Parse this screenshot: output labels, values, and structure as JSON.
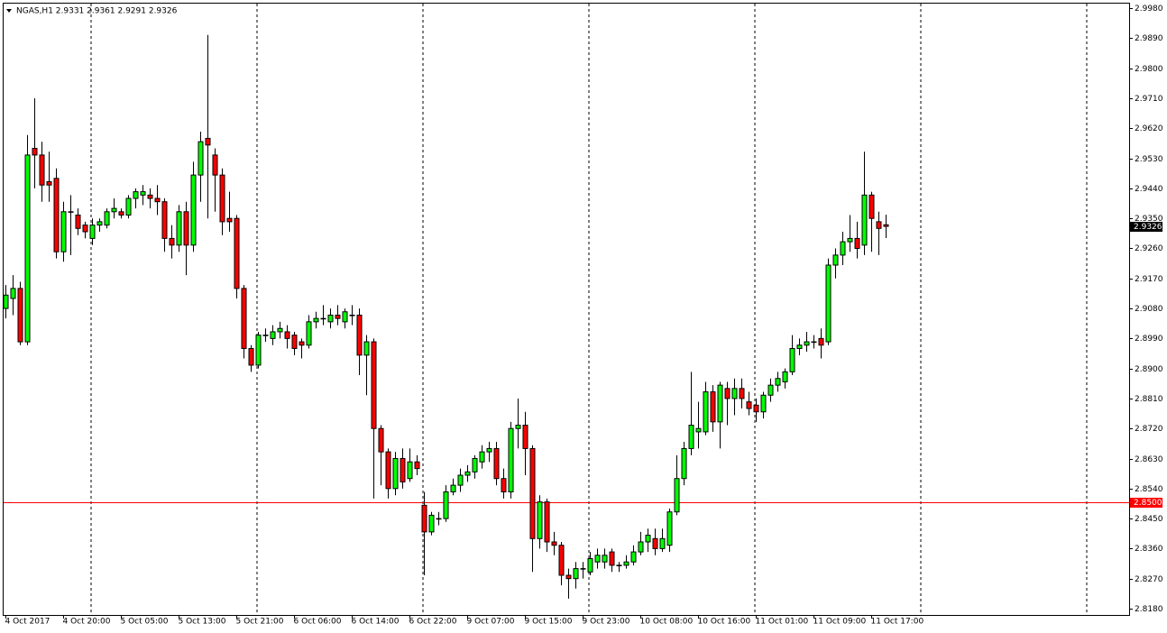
{
  "chart_data": {
    "type": "candlestick",
    "title": "NGAS,H1  2.9331 2.9361 2.9291 2.9326",
    "up_color": "#00ff00",
    "down_color": "#ff0000",
    "ylim": [
      2.8161,
      2.9994
    ],
    "yticks": [
      {
        "value": 2.998,
        "label": "2.9980"
      },
      {
        "value": 2.989,
        "label": "2.9890"
      },
      {
        "value": 2.98,
        "label": "2.9800"
      },
      {
        "value": 2.971,
        "label": "2.9710"
      },
      {
        "value": 2.962,
        "label": "2.9620"
      },
      {
        "value": 2.953,
        "label": "2.9530"
      },
      {
        "value": 2.944,
        "label": "2.9440"
      },
      {
        "value": 2.935,
        "label": "2.9350"
      },
      {
        "value": 2.926,
        "label": "2.9260"
      },
      {
        "value": 2.917,
        "label": "2.9170"
      },
      {
        "value": 2.908,
        "label": "2.9080"
      },
      {
        "value": 2.899,
        "label": "2.8990"
      },
      {
        "value": 2.89,
        "label": "2.8900"
      },
      {
        "value": 2.881,
        "label": "2.8810"
      },
      {
        "value": 2.872,
        "label": "2.8720"
      },
      {
        "value": 2.863,
        "label": "2.8630"
      },
      {
        "value": 2.854,
        "label": "2.8540"
      },
      {
        "value": 2.845,
        "label": "2.8450"
      },
      {
        "value": 2.836,
        "label": "2.8360"
      },
      {
        "value": 2.827,
        "label": "2.8270"
      },
      {
        "value": 2.818,
        "label": "2.8180"
      }
    ],
    "hline": {
      "value": 2.85,
      "label": "2.8500",
      "color": "#ff0000"
    },
    "last_price": {
      "value": 2.9326,
      "label": "2.9326"
    },
    "categories": [
      "4 Oct 2017",
      null,
      null,
      null,
      null,
      null,
      null,
      null,
      "4 Oct 20:00",
      null,
      null,
      null,
      null,
      null,
      null,
      null,
      "5 Oct 05:00",
      null,
      null,
      null,
      null,
      null,
      null,
      null,
      "5 Oct 13:00",
      null,
      null,
      null,
      null,
      null,
      null,
      null,
      "5 Oct 21:00",
      null,
      null,
      null,
      null,
      null,
      null,
      null,
      "6 Oct 06:00",
      null,
      null,
      null,
      null,
      null,
      null,
      null,
      "6 Oct 14:00",
      null,
      null,
      null,
      null,
      null,
      null,
      null,
      "6 Oct 22:00",
      null,
      null,
      null,
      null,
      null,
      null,
      null,
      "9 Oct 07:00",
      null,
      null,
      null,
      null,
      null,
      null,
      null,
      "9 Oct 15:00",
      null,
      null,
      null,
      null,
      null,
      null,
      null,
      "9 Oct 23:00",
      null,
      null,
      null,
      null,
      null,
      null,
      null,
      "10 Oct 08:00",
      null,
      null,
      null,
      null,
      null,
      null,
      null,
      "10 Oct 16:00",
      null,
      null,
      null,
      null,
      null,
      null,
      null,
      "11 Oct 01:00",
      null,
      null,
      null,
      null,
      null,
      null,
      null,
      "11 Oct 09:00",
      null,
      null,
      null,
      null,
      null,
      null,
      null,
      "11 Oct 17:00",
      null,
      null
    ],
    "open": [
      2.908,
      2.911,
      2.914,
      2.898,
      2.956,
      2.954,
      2.946,
      2.947,
      2.925,
      2.937,
      2.936,
      2.933,
      2.929,
      2.933,
      2.933,
      2.937,
      2.937,
      2.936,
      2.941,
      2.942,
      2.942,
      2.941,
      2.94,
      2.929,
      2.927,
      2.937,
      2.927,
      2.948,
      2.959,
      2.954,
      2.948,
      2.935,
      2.935,
      2.914,
      2.896,
      2.891,
      2.9,
      2.899,
      2.901,
      2.901,
      2.9,
      2.898,
      2.897,
      2.904,
      2.905,
      2.904,
      2.906,
      2.904,
      2.906,
      2.906,
      2.894,
      2.898,
      2.872,
      2.865,
      2.854,
      2.863,
      2.857,
      2.862,
      2.849,
      2.841,
      2.845,
      2.845,
      2.853,
      2.855,
      2.858,
      2.859,
      2.862,
      2.865,
      2.866,
      2.857,
      2.853,
      2.872,
      2.873,
      2.866,
      2.839,
      2.85,
      2.838,
      2.837,
      2.828,
      2.827,
      2.83,
      2.829,
      2.832,
      2.832,
      2.835,
      2.831,
      2.831,
      2.832,
      2.835,
      2.838,
      2.839,
      2.836,
      2.837,
      2.847,
      2.857,
      2.866,
      2.871,
      2.871,
      2.883,
      2.874,
      2.884,
      2.881,
      2.884,
      2.88,
      2.879,
      2.877,
      2.882,
      2.885,
      2.886,
      2.889,
      2.896,
      2.897,
      2.898,
      2.899,
      2.898,
      2.921,
      2.924,
      2.928,
      2.929,
      2.927,
      2.942,
      2.934,
      2.9331
    ],
    "high": [
      2.915,
      2.918,
      2.916,
      2.96,
      2.971,
      2.958,
      2.955,
      2.95,
      2.94,
      2.942,
      2.938,
      2.934,
      2.935,
      2.935,
      2.938,
      2.941,
      2.938,
      2.942,
      2.944,
      2.945,
      2.944,
      2.945,
      2.941,
      2.933,
      2.939,
      2.94,
      2.952,
      2.961,
      2.99,
      2.956,
      2.95,
      2.943,
      2.936,
      2.915,
      2.897,
      2.901,
      2.902,
      2.903,
      2.904,
      2.903,
      2.901,
      2.899,
      2.906,
      2.907,
      2.909,
      2.908,
      2.909,
      2.908,
      2.909,
      2.908,
      2.9,
      2.899,
      2.873,
      2.866,
      2.865,
      2.866,
      2.866,
      2.864,
      2.853,
      2.847,
      2.847,
      2.855,
      2.857,
      2.86,
      2.861,
      2.864,
      2.867,
      2.868,
      2.868,
      2.86,
      2.874,
      2.881,
      2.877,
      2.867,
      2.852,
      2.851,
      2.841,
      2.838,
      2.83,
      2.832,
      2.832,
      2.835,
      2.836,
      2.836,
      2.836,
      2.832,
      2.834,
      2.837,
      2.841,
      2.842,
      2.842,
      2.842,
      2.848,
      2.864,
      2.868,
      2.889,
      2.88,
      2.886,
      2.885,
      2.886,
      2.886,
      2.887,
      2.887,
      2.883,
      2.881,
      2.883,
      2.887,
      2.889,
      2.89,
      2.9,
      2.899,
      2.901,
      2.9,
      2.902,
      2.923,
      2.926,
      2.931,
      2.936,
      2.934,
      2.955,
      2.943,
      2.937,
      2.9361
    ],
    "low": [
      2.905,
      2.906,
      2.897,
      2.897,
      2.944,
      2.94,
      2.94,
      2.923,
      2.922,
      2.924,
      2.93,
      2.929,
      2.927,
      2.931,
      2.932,
      2.935,
      2.935,
      2.935,
      2.938,
      2.939,
      2.938,
      2.936,
      2.925,
      2.923,
      2.925,
      2.918,
      2.925,
      2.94,
      2.935,
      2.937,
      2.93,
      2.931,
      2.911,
      2.893,
      2.889,
      2.89,
      2.898,
      2.897,
      2.899,
      2.896,
      2.894,
      2.893,
      2.896,
      2.902,
      2.903,
      2.902,
      2.903,
      2.902,
      2.903,
      2.888,
      2.882,
      2.851,
      2.855,
      2.851,
      2.852,
      2.854,
      2.856,
      2.858,
      2.828,
      2.84,
      2.843,
      2.844,
      2.852,
      2.853,
      2.856,
      2.857,
      2.86,
      2.862,
      2.855,
      2.851,
      2.851,
      2.866,
      2.858,
      2.829,
      2.836,
      2.835,
      2.834,
      2.825,
      2.821,
      2.824,
      2.827,
      2.828,
      2.83,
      2.83,
      2.829,
      2.829,
      2.83,
      2.831,
      2.834,
      2.835,
      2.834,
      2.835,
      2.835,
      2.846,
      2.855,
      2.864,
      2.866,
      2.87,
      2.871,
      2.866,
      2.873,
      2.876,
      2.878,
      2.876,
      2.874,
      2.875,
      2.88,
      2.883,
      2.884,
      2.888,
      2.894,
      2.895,
      2.896,
      2.893,
      2.897,
      2.917,
      2.921,
      2.925,
      2.923,
      2.924,
      2.925,
      2.924,
      2.9291
    ],
    "close": [
      2.912,
      2.914,
      2.898,
      2.954,
      2.954,
      2.945,
      2.945,
      2.925,
      2.937,
      2.937,
      2.932,
      2.931,
      2.933,
      2.934,
      2.937,
      2.938,
      2.936,
      2.941,
      2.943,
      2.943,
      2.941,
      2.94,
      2.929,
      2.927,
      2.937,
      2.927,
      2.948,
      2.958,
      2.957,
      2.948,
      2.934,
      2.934,
      2.914,
      2.896,
      2.891,
      2.9,
      2.9,
      2.901,
      2.902,
      2.899,
      2.896,
      2.897,
      2.904,
      2.905,
      2.905,
      2.906,
      2.905,
      2.907,
      2.906,
      2.894,
      2.898,
      2.872,
      2.865,
      2.854,
      2.863,
      2.856,
      2.862,
      2.86,
      2.841,
      2.846,
      2.845,
      2.853,
      2.855,
      2.858,
      2.859,
      2.863,
      2.865,
      2.866,
      2.857,
      2.853,
      2.872,
      2.873,
      2.866,
      2.839,
      2.85,
      2.838,
      2.837,
      2.828,
      2.827,
      2.83,
      2.83,
      2.833,
      2.834,
      2.834,
      2.831,
      2.831,
      2.832,
      2.835,
      2.838,
      2.84,
      2.836,
      2.839,
      2.847,
      2.857,
      2.866,
      2.873,
      2.872,
      2.883,
      2.874,
      2.885,
      2.881,
      2.884,
      2.881,
      2.878,
      2.877,
      2.882,
      2.885,
      2.887,
      2.889,
      2.896,
      2.897,
      2.898,
      2.898,
      2.897,
      2.921,
      2.924,
      2.928,
      2.929,
      2.926,
      2.942,
      2.935,
      2.932,
      2.9326
    ]
  }
}
